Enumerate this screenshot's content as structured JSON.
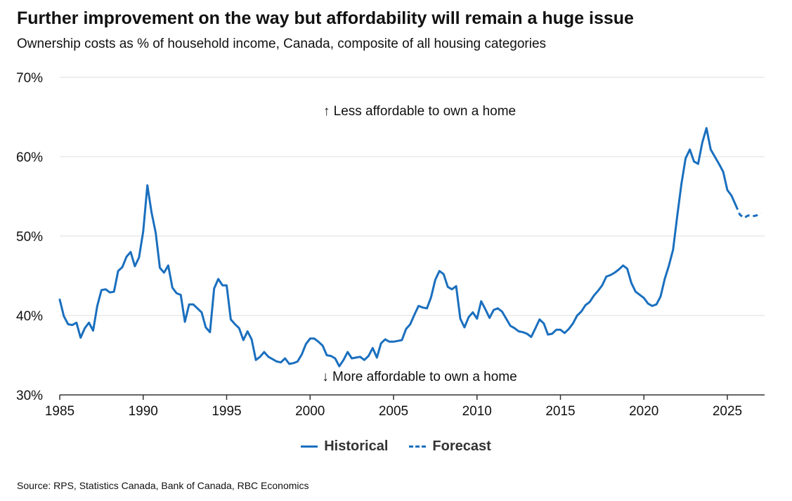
{
  "chart_data": {
    "type": "line",
    "title": "Further improvement on the way but affordability will remain a huge issue",
    "subtitle": "Ownership costs as % of household income, Canada, composite of all housing categories",
    "source": "Source: RPS, Statistics Canada, Bank of Canada, RBC Economics",
    "xlim": [
      1985,
      2027
    ],
    "ylim": [
      30,
      70
    ],
    "x_ticks": [
      1985,
      1990,
      1995,
      2000,
      2005,
      2010,
      2015,
      2020,
      2025
    ],
    "y_ticks": [
      {
        "value": 30,
        "label": "30%"
      },
      {
        "value": 40,
        "label": "40%"
      },
      {
        "value": 50,
        "label": "50%"
      },
      {
        "value": 60,
        "label": "60%"
      },
      {
        "value": 70,
        "label": "70%"
      }
    ],
    "annotations": {
      "upper": "↑ Less affordable to own a home",
      "lower": "↓ More affordable to own a home"
    },
    "legend": {
      "historical": "Historical",
      "forecast": "Forecast"
    },
    "colors": {
      "line": "#1a6fbe",
      "grid": "#dddddd",
      "axis": "#333333"
    },
    "series": [
      {
        "name": "Historical",
        "style": "solid",
        "points": [
          [
            1985.0,
            42.0
          ],
          [
            1985.25,
            39.9
          ],
          [
            1985.5,
            38.9
          ],
          [
            1985.75,
            38.8
          ],
          [
            1986.0,
            39.1
          ],
          [
            1986.25,
            37.2
          ],
          [
            1986.5,
            38.4
          ],
          [
            1986.75,
            39.1
          ],
          [
            1987.0,
            38.1
          ],
          [
            1987.25,
            41.2
          ],
          [
            1987.5,
            43.2
          ],
          [
            1987.75,
            43.3
          ],
          [
            1988.0,
            42.9
          ],
          [
            1988.25,
            43.0
          ],
          [
            1988.5,
            45.6
          ],
          [
            1988.75,
            46.1
          ],
          [
            1989.0,
            47.4
          ],
          [
            1989.25,
            48.0
          ],
          [
            1989.5,
            46.2
          ],
          [
            1989.75,
            47.3
          ],
          [
            1990.0,
            50.6
          ],
          [
            1990.25,
            56.4
          ],
          [
            1990.5,
            53.0
          ],
          [
            1990.75,
            50.4
          ],
          [
            1991.0,
            46.0
          ],
          [
            1991.25,
            45.4
          ],
          [
            1991.5,
            46.3
          ],
          [
            1991.75,
            43.5
          ],
          [
            1992.0,
            42.8
          ],
          [
            1992.25,
            42.6
          ],
          [
            1992.5,
            39.2
          ],
          [
            1992.75,
            41.4
          ],
          [
            1993.0,
            41.4
          ],
          [
            1993.25,
            40.9
          ],
          [
            1993.5,
            40.4
          ],
          [
            1993.75,
            38.5
          ],
          [
            1994.0,
            37.9
          ],
          [
            1994.25,
            43.4
          ],
          [
            1994.5,
            44.6
          ],
          [
            1994.75,
            43.8
          ],
          [
            1995.0,
            43.8
          ],
          [
            1995.25,
            39.5
          ],
          [
            1995.5,
            38.9
          ],
          [
            1995.75,
            38.4
          ],
          [
            1996.0,
            36.9
          ],
          [
            1996.25,
            38.0
          ],
          [
            1996.5,
            37.0
          ],
          [
            1996.75,
            34.4
          ],
          [
            1997.0,
            34.8
          ],
          [
            1997.25,
            35.4
          ],
          [
            1997.5,
            34.8
          ],
          [
            1997.75,
            34.5
          ],
          [
            1998.0,
            34.2
          ],
          [
            1998.25,
            34.1
          ],
          [
            1998.5,
            34.6
          ],
          [
            1998.75,
            33.9
          ],
          [
            1999.0,
            34.0
          ],
          [
            1999.25,
            34.2
          ],
          [
            1999.5,
            35.1
          ],
          [
            1999.75,
            36.4
          ],
          [
            2000.0,
            37.1
          ],
          [
            2000.25,
            37.1
          ],
          [
            2000.5,
            36.7
          ],
          [
            2000.75,
            36.2
          ],
          [
            2001.0,
            35.0
          ],
          [
            2001.25,
            34.9
          ],
          [
            2001.5,
            34.6
          ],
          [
            2001.75,
            33.6
          ],
          [
            2002.0,
            34.4
          ],
          [
            2002.25,
            35.4
          ],
          [
            2002.5,
            34.6
          ],
          [
            2002.75,
            34.7
          ],
          [
            2003.0,
            34.8
          ],
          [
            2003.25,
            34.4
          ],
          [
            2003.5,
            34.9
          ],
          [
            2003.75,
            35.9
          ],
          [
            2004.0,
            34.7
          ],
          [
            2004.25,
            36.5
          ],
          [
            2004.5,
            37.0
          ],
          [
            2004.75,
            36.7
          ],
          [
            2005.0,
            36.7
          ],
          [
            2005.25,
            36.8
          ],
          [
            2005.5,
            36.9
          ],
          [
            2005.75,
            38.3
          ],
          [
            2006.0,
            38.9
          ],
          [
            2006.25,
            40.1
          ],
          [
            2006.5,
            41.2
          ],
          [
            2006.75,
            41.0
          ],
          [
            2007.0,
            40.9
          ],
          [
            2007.25,
            42.3
          ],
          [
            2007.5,
            44.5
          ],
          [
            2007.75,
            45.6
          ],
          [
            2008.0,
            45.2
          ],
          [
            2008.25,
            43.6
          ],
          [
            2008.5,
            43.3
          ],
          [
            2008.75,
            43.7
          ],
          [
            2009.0,
            39.6
          ],
          [
            2009.25,
            38.5
          ],
          [
            2009.5,
            39.8
          ],
          [
            2009.75,
            40.4
          ],
          [
            2010.0,
            39.6
          ],
          [
            2010.25,
            41.8
          ],
          [
            2010.5,
            40.8
          ],
          [
            2010.75,
            39.7
          ],
          [
            2011.0,
            40.7
          ],
          [
            2011.25,
            40.9
          ],
          [
            2011.5,
            40.5
          ],
          [
            2011.75,
            39.6
          ],
          [
            2012.0,
            38.7
          ],
          [
            2012.25,
            38.4
          ],
          [
            2012.5,
            38.0
          ],
          [
            2012.75,
            37.9
          ],
          [
            2013.0,
            37.7
          ],
          [
            2013.25,
            37.3
          ],
          [
            2013.5,
            38.4
          ],
          [
            2013.75,
            39.5
          ],
          [
            2014.0,
            39.0
          ],
          [
            2014.25,
            37.6
          ],
          [
            2014.5,
            37.7
          ],
          [
            2014.75,
            38.2
          ],
          [
            2015.0,
            38.2
          ],
          [
            2015.25,
            37.8
          ],
          [
            2015.5,
            38.3
          ],
          [
            2015.75,
            39.0
          ],
          [
            2016.0,
            40.0
          ],
          [
            2016.25,
            40.5
          ],
          [
            2016.5,
            41.3
          ],
          [
            2016.75,
            41.7
          ],
          [
            2017.0,
            42.5
          ],
          [
            2017.25,
            43.1
          ],
          [
            2017.5,
            43.8
          ],
          [
            2017.75,
            44.9
          ],
          [
            2018.0,
            45.1
          ],
          [
            2018.25,
            45.4
          ],
          [
            2018.5,
            45.8
          ],
          [
            2018.75,
            46.3
          ],
          [
            2019.0,
            45.9
          ],
          [
            2019.25,
            44.1
          ],
          [
            2019.5,
            43.0
          ],
          [
            2019.75,
            42.6
          ],
          [
            2020.0,
            42.2
          ],
          [
            2020.25,
            41.5
          ],
          [
            2020.5,
            41.2
          ],
          [
            2020.75,
            41.4
          ],
          [
            2021.0,
            42.4
          ],
          [
            2021.25,
            44.6
          ],
          [
            2021.5,
            46.3
          ],
          [
            2021.75,
            48.3
          ],
          [
            2022.0,
            52.6
          ],
          [
            2022.25,
            56.6
          ],
          [
            2022.5,
            59.8
          ],
          [
            2022.75,
            60.9
          ],
          [
            2023.0,
            59.4
          ],
          [
            2023.25,
            59.1
          ],
          [
            2023.5,
            61.8
          ],
          [
            2023.75,
            63.6
          ],
          [
            2024.0,
            60.9
          ],
          [
            2024.25,
            60.0
          ],
          [
            2024.5,
            59.1
          ],
          [
            2024.75,
            58.1
          ],
          [
            2025.0,
            55.8
          ],
          [
            2025.25,
            55.1
          ],
          [
            2025.5,
            53.9
          ]
        ]
      },
      {
        "name": "Forecast",
        "style": "dashed",
        "points": [
          [
            2025.5,
            53.9
          ],
          [
            2025.75,
            52.7
          ],
          [
            2026.0,
            52.3
          ],
          [
            2026.25,
            52.6
          ],
          [
            2026.5,
            52.5
          ],
          [
            2026.75,
            52.6
          ],
          [
            2027.0,
            52.9
          ]
        ]
      }
    ]
  }
}
